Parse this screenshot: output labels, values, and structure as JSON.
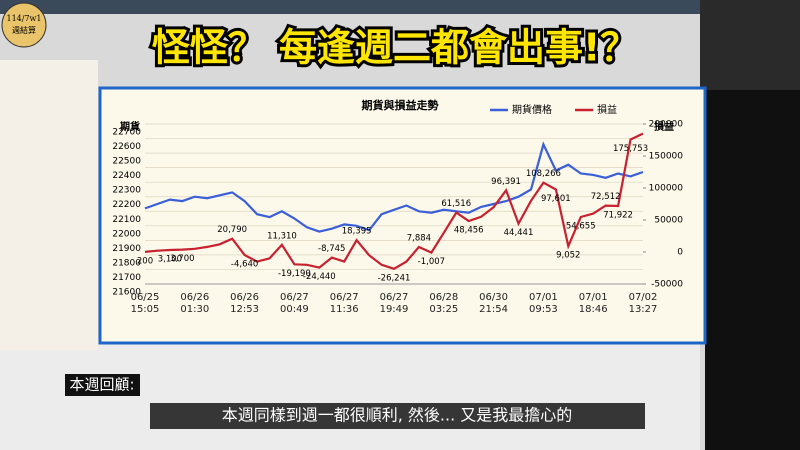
{
  "badge": {
    "lines": [
      "114/7w1",
      "週結算"
    ]
  },
  "headline": "怪怪？ 每逢週二都會出事!？",
  "caption_label": "本週回顧:",
  "subtitle": "本週同樣到週一都很順利, 然後... 又是我最擔心的",
  "chart_data": {
    "type": "line",
    "title": "期貨與損益走勢",
    "y_label": "期貨",
    "y2_label": "損益",
    "categories": [
      "06/25\n15:05",
      null,
      null,
      null,
      "06/26\n01:30",
      null,
      null,
      null,
      "06/26\n12:53",
      null,
      null,
      null,
      "06/27\n00:49",
      null,
      null,
      null,
      "06/27\n11:36",
      null,
      null,
      null,
      "06/27\n19:49",
      null,
      null,
      null,
      "06/28\n03:25",
      null,
      null,
      null,
      "06/30\n21:54",
      null,
      null,
      null,
      "07/01\n09:53",
      null,
      null,
      null,
      "07/01\n18:46",
      null,
      null,
      null,
      "07/02\n13:27"
    ],
    "series": [
      {
        "name": "期貨價格",
        "color": "#3a5fd9",
        "values": [
          22120,
          22150,
          22180,
          22170,
          22200,
          22190,
          22210,
          22230,
          22170,
          22080,
          22060,
          22100,
          22050,
          21990,
          21960,
          21980,
          22010,
          22000,
          21970,
          22080,
          22110,
          22140,
          22100,
          22090,
          22110,
          22100,
          22090,
          22130,
          22150,
          22170,
          22200,
          22250,
          22560,
          22380,
          22420,
          22360,
          22350,
          22330,
          22360,
          22340,
          22370
        ]
      },
      {
        "name": "損益",
        "color": "#c8202f",
        "axis": "y2",
        "values": [
          200,
          2000,
          3100,
          3700,
          5000,
          8000,
          12000,
          20790,
          -4640,
          -15000,
          -10000,
          11310,
          -19190,
          -20000,
          -24440,
          -8745,
          -15000,
          18395,
          -5000,
          -20000,
          -26241,
          -15000,
          7884,
          -1007,
          30000,
          61516,
          48456,
          55000,
          70000,
          96391,
          44441,
          80000,
          108266,
          97601,
          9052,
          54655,
          60000,
          72512,
          71922,
          175753,
          185000
        ],
        "value_labels": [
          "200",
          null,
          "3,100",
          "3,700",
          null,
          null,
          null,
          "20,790",
          "-4,640",
          null,
          null,
          "11,310",
          "-19,190",
          null,
          "-24,440",
          "-8,745",
          null,
          "18,395",
          null,
          null,
          "-26,241",
          null,
          "7,884",
          "-1,007",
          null,
          "61,516",
          "48,456",
          null,
          null,
          "96,391",
          "44,441",
          null,
          "108,266",
          "97,601",
          "9,052",
          "54,655",
          null,
          "72,512",
          "71,922",
          "175,753",
          null
        ]
      }
    ],
    "ylim": [
      21600,
      22700
    ],
    "yticks": [
      21600,
      21700,
      21800,
      21900,
      22000,
      22100,
      22200,
      22300,
      22400,
      22500,
      22600,
      22700
    ],
    "y2lim": [
      -50000,
      200000
    ],
    "y2ticks": [
      {
        "value": -50000,
        "label": "-50000"
      },
      0,
      50000,
      100000,
      150000,
      200000
    ],
    "grid": true,
    "legend": "top-right"
  }
}
